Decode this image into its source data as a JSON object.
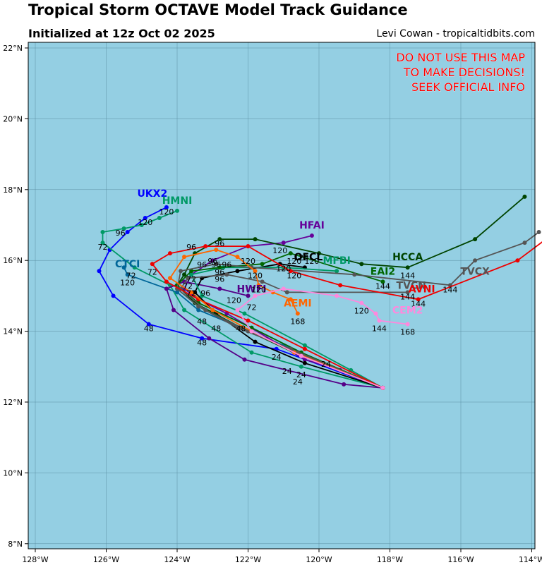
{
  "title": "Tropical Storm OCTAVE Model Track Guidance",
  "subtitle": "Initialized at 12z Oct 02 2025",
  "credit": "Levi Cowan - tropicaltidbits.com",
  "warning": [
    "DO NOT USE THIS MAP",
    "TO MAKE DECISIONS!",
    "SEEK OFFICIAL INFO"
  ],
  "lon_ticks": [
    "128°W",
    "126°W",
    "124°W",
    "122°W",
    "120°W",
    "118°W",
    "116°W",
    "114°W"
  ],
  "lat_ticks": [
    "22°N",
    "20°N",
    "18°N",
    "16°N",
    "14°N",
    "12°N",
    "10°N",
    "8°N"
  ],
  "colors": {
    "ocean": "#94cfe3",
    "grid": "#5b8fa3",
    "warning": "#ff0000"
  },
  "tracks": [
    {
      "name": "UKX2",
      "color": "#0000ff",
      "label_at": [
        -124.7,
        17.8
      ],
      "points": [
        [
          -118.2,
          12.4
        ],
        [
          -121.2,
          13.5
        ],
        [
          -123.3,
          13.8
        ],
        [
          -124.8,
          14.2
        ],
        [
          -125.8,
          15.0
        ],
        [
          -126.2,
          15.7
        ],
        [
          -125.9,
          16.3
        ],
        [
          -125.4,
          16.8
        ],
        [
          -124.9,
          17.2
        ],
        [
          -124.3,
          17.5
        ]
      ],
      "hours": [
        {
          "lab": "48",
          "at": [
            -124.8,
            14.0
          ]
        },
        {
          "lab": "120",
          "at": [
            -124.3,
            17.3
          ]
        }
      ]
    },
    {
      "name": "HMNI",
      "color": "#009966",
      "label_at": [
        -124.0,
        17.6
      ],
      "points": [
        [
          -118.2,
          12.4
        ],
        [
          -120.5,
          13.0
        ],
        [
          -121.9,
          13.4
        ],
        [
          -123.8,
          14.6
        ],
        [
          -124.2,
          15.3
        ],
        [
          -125.2,
          15.8
        ],
        [
          -126.1,
          16.5
        ],
        [
          -126.1,
          16.8
        ],
        [
          -125.5,
          16.9
        ],
        [
          -125.0,
          17.0
        ],
        [
          -124.5,
          17.2
        ],
        [
          -124.0,
          17.4
        ]
      ],
      "hours": [
        {
          "lab": "72",
          "at": [
            -126.1,
            16.3
          ]
        },
        {
          "lab": "96",
          "at": [
            -125.6,
            16.7
          ]
        },
        {
          "lab": "120",
          "at": [
            -124.9,
            17.0
          ]
        }
      ]
    },
    {
      "name": "CTCI",
      "color": "#006699",
      "label_at": [
        -125.4,
        15.8
      ],
      "points": [
        [
          -118.2,
          12.4
        ],
        [
          -121.0,
          13.6
        ],
        [
          -123.4,
          14.6
        ],
        [
          -124.0,
          15.1
        ],
        [
          -125.4,
          15.6
        ],
        [
          -125.5,
          15.8
        ]
      ],
      "hours": [
        {
          "lab": "72",
          "at": [
            -125.3,
            15.5
          ]
        },
        {
          "lab": "120",
          "at": [
            -125.4,
            15.3
          ]
        }
      ]
    },
    {
      "name": "HFAI",
      "color": "#660099",
      "label_at": [
        -120.2,
        16.9
      ],
      "points": [
        [
          -118.2,
          12.4
        ],
        [
          -119.4,
          12.9
        ],
        [
          -120.4,
          13.2
        ],
        [
          -122.6,
          14.5
        ],
        [
          -123.4,
          14.9
        ],
        [
          -123.8,
          15.2
        ],
        [
          -123.6,
          15.6
        ],
        [
          -123.0,
          16.0
        ],
        [
          -122.0,
          16.4
        ],
        [
          -121.0,
          16.5
        ],
        [
          -120.2,
          16.7
        ]
      ],
      "hours": [
        {
          "lab": "72",
          "at": [
            -123.6,
            15.4
          ]
        },
        {
          "lab": "96",
          "at": [
            -123.3,
            15.8
          ]
        },
        {
          "lab": "120",
          "at": [
            -121.1,
            16.2
          ]
        }
      ]
    },
    {
      "name": "HWFI",
      "color": "#550088",
      "label_at": [
        -121.9,
        15.1
      ],
      "points": [
        [
          -118.2,
          12.4
        ],
        [
          -119.3,
          12.5
        ],
        [
          -122.1,
          13.2
        ],
        [
          -123.1,
          13.8
        ],
        [
          -124.1,
          14.6
        ],
        [
          -124.3,
          15.2
        ],
        [
          -123.8,
          15.4
        ],
        [
          -122.8,
          15.2
        ],
        [
          -122.0,
          15.0
        ]
      ],
      "hours": [
        {
          "lab": "72",
          "at": [
            -121.9,
            14.6
          ]
        },
        {
          "lab": "96",
          "at": [
            -123.2,
            15.0
          ]
        },
        {
          "lab": "120",
          "at": [
            -122.4,
            14.8
          ]
        }
      ]
    },
    {
      "name": "OFCL",
      "color": "#000000",
      "label_at": [
        -120.3,
        16.0
      ],
      "points": [
        [
          -118.2,
          12.4
        ],
        [
          -120.4,
          13.1
        ],
        [
          -121.8,
          13.7
        ],
        [
          -122.9,
          14.5
        ],
        [
          -123.5,
          15.1
        ],
        [
          -123.3,
          15.5
        ],
        [
          -122.3,
          15.7
        ],
        [
          -121.1,
          15.9
        ],
        [
          -120.4,
          15.8
        ]
      ],
      "hours": [
        {
          "lab": "72",
          "at": [
            -123.6,
            15.0
          ]
        },
        {
          "lab": "96",
          "at": [
            -122.9,
            15.8
          ]
        },
        {
          "lab": "120",
          "at": [
            -121.0,
            15.7
          ]
        }
      ]
    },
    {
      "name": "HCCA",
      "color": "#004400",
      "label_at": [
        -117.5,
        16.0
      ],
      "points": [
        [
          -118.2,
          12.4
        ],
        [
          -120.5,
          13.3
        ],
        [
          -122.2,
          14.1
        ],
        [
          -123.5,
          14.8
        ],
        [
          -124.0,
          15.3
        ],
        [
          -123.8,
          15.6
        ],
        [
          -123.5,
          16.2
        ],
        [
          -122.8,
          16.6
        ],
        [
          -121.8,
          16.6
        ],
        [
          -120.0,
          16.2
        ],
        [
          -118.8,
          15.9
        ],
        [
          -117.5,
          15.8
        ],
        [
          -115.6,
          16.6
        ],
        [
          -114.2,
          17.8
        ]
      ],
      "hours": [
        {
          "lab": "96",
          "at": [
            -123.6,
            16.3
          ]
        },
        {
          "lab": "120",
          "at": [
            -120.2,
            15.9
          ]
        },
        {
          "lab": "144",
          "at": [
            -117.5,
            15.5
          ]
        }
      ]
    },
    {
      "name": "MFBI",
      "color": "#009966",
      "label_at": [
        -119.5,
        15.9
      ],
      "points": [
        [
          -118.2,
          12.4
        ],
        [
          -119.1,
          12.9
        ],
        [
          -120.4,
          13.6
        ],
        [
          -122.1,
          14.5
        ],
        [
          -123.3,
          15.0
        ],
        [
          -123.6,
          15.6
        ],
        [
          -122.7,
          15.8
        ],
        [
          -121.0,
          15.8
        ],
        [
          -119.5,
          15.7
        ]
      ],
      "hours": [
        {
          "lab": "72",
          "at": [
            -123.7,
            15.2
          ]
        },
        {
          "lab": "96",
          "at": [
            -122.8,
            15.6
          ]
        },
        {
          "lab": "120",
          "at": [
            -120.7,
            15.5
          ]
        }
      ]
    },
    {
      "name": "EAI2",
      "color": "#006600",
      "label_at": [
        -118.2,
        15.6
      ],
      "points": [
        [
          -118.2,
          12.4
        ],
        [
          -120.5,
          13.4
        ],
        [
          -121.9,
          14.1
        ],
        [
          -123.4,
          14.8
        ],
        [
          -124.0,
          15.3
        ],
        [
          -123.6,
          15.7
        ],
        [
          -122.8,
          15.8
        ],
        [
          -121.6,
          15.9
        ],
        [
          -120.8,
          16.2
        ],
        [
          -118.2,
          15.4
        ]
      ],
      "hours": [
        {
          "lab": "96",
          "at": [
            -122.6,
            15.8
          ]
        },
        {
          "lab": "120",
          "at": [
            -120.5,
            16.0
          ]
        },
        {
          "lab": "144",
          "at": [
            -118.2,
            15.2
          ]
        }
      ]
    },
    {
      "name": "TVCN",
      "color": "#555555",
      "label_at": [
        -117.4,
        15.2
      ],
      "points": [
        [
          -118.2,
          12.4
        ],
        [
          -120.6,
          13.4
        ],
        [
          -122.0,
          14.0
        ],
        [
          -123.2,
          14.6
        ],
        [
          -123.9,
          15.2
        ],
        [
          -123.7,
          15.5
        ],
        [
          -122.6,
          15.6
        ],
        [
          -121.6,
          15.4
        ],
        [
          -120.9,
          15.1
        ],
        [
          -117.5,
          15.1
        ]
      ],
      "hours": [
        {
          "lab": "96",
          "at": [
            -122.8,
            15.4
          ]
        },
        {
          "lab": "120",
          "at": [
            -121.7,
            15.1
          ]
        },
        {
          "lab": "144",
          "at": [
            -117.5,
            14.9
          ]
        }
      ]
    },
    {
      "name": "TVCX",
      "color": "#555555",
      "label_at": [
        -115.6,
        15.6
      ],
      "points": [
        [
          -118.2,
          12.4
        ],
        [
          -120.8,
          13.5
        ],
        [
          -122.3,
          14.1
        ],
        [
          -123.4,
          14.7
        ],
        [
          -124.0,
          15.2
        ],
        [
          -123.9,
          15.7
        ],
        [
          -122.9,
          15.9
        ],
        [
          -121.9,
          15.8
        ],
        [
          -119.0,
          15.6
        ],
        [
          -116.3,
          15.3
        ],
        [
          -115.6,
          16.0
        ],
        [
          -114.2,
          16.5
        ],
        [
          -113.8,
          16.8
        ]
      ],
      "hours": [
        {
          "lab": "96",
          "at": [
            -123.0,
            15.9
          ]
        },
        {
          "lab": "120",
          "at": [
            -122.0,
            15.9
          ]
        },
        {
          "lab": "144",
          "at": [
            -116.3,
            15.1
          ]
        }
      ]
    },
    {
      "name": "AVNI",
      "color": "#ee0000",
      "label_at": [
        -117.1,
        15.1
      ],
      "points": [
        [
          -118.2,
          12.4
        ],
        [
          -120.4,
          13.5
        ],
        [
          -122.0,
          14.3
        ],
        [
          -123.4,
          14.9
        ],
        [
          -124.3,
          15.4
        ],
        [
          -124.7,
          15.9
        ],
        [
          -124.2,
          16.2
        ],
        [
          -123.2,
          16.4
        ],
        [
          -122.0,
          16.4
        ],
        [
          -120.8,
          15.7
        ],
        [
          -119.4,
          15.3
        ],
        [
          -117.2,
          14.9
        ],
        [
          -114.4,
          16.0
        ],
        [
          -113.6,
          16.6
        ]
      ],
      "hours": [
        {
          "lab": "72",
          "at": [
            -124.7,
            15.6
          ]
        },
        {
          "lab": "96",
          "at": [
            -122.8,
            16.4
          ]
        },
        {
          "lab": "120",
          "at": [
            -120.7,
            15.9
          ]
        },
        {
          "lab": "144",
          "at": [
            -117.2,
            14.7
          ]
        }
      ]
    },
    {
      "name": "AEMI",
      "color": "#ff6600",
      "label_at": [
        -120.6,
        14.7
      ],
      "points": [
        [
          -118.2,
          12.4
        ],
        [
          -120.7,
          13.4
        ],
        [
          -121.9,
          14.0
        ],
        [
          -123.0,
          14.6
        ],
        [
          -123.6,
          15.1
        ],
        [
          -124.2,
          15.5
        ],
        [
          -123.8,
          16.1
        ],
        [
          -122.9,
          16.3
        ],
        [
          -122.3,
          16.1
        ],
        [
          -121.8,
          15.7
        ],
        [
          -121.7,
          15.3
        ],
        [
          -121.3,
          15.1
        ],
        [
          -120.8,
          14.9
        ],
        [
          -120.6,
          14.5
        ]
      ],
      "hours": [
        {
          "lab": "120",
          "at": [
            -121.8,
            15.5
          ]
        },
        {
          "lab": "168",
          "at": [
            -120.6,
            14.2
          ]
        }
      ]
    },
    {
      "name": "CEM2",
      "color": "#ff88dd",
      "label_at": [
        -117.5,
        14.5
      ],
      "points": [
        [
          -118.2,
          12.4
        ],
        [
          -120.5,
          13.3
        ],
        [
          -121.9,
          14.0
        ],
        [
          -122.3,
          14.6
        ],
        [
          -121.8,
          15.0
        ],
        [
          -121.0,
          15.2
        ],
        [
          -119.5,
          15.0
        ],
        [
          -118.8,
          14.8
        ],
        [
          -118.4,
          14.5
        ],
        [
          -118.3,
          14.3
        ],
        [
          -117.5,
          14.2
        ]
      ],
      "hours": [
        {
          "lab": "120",
          "at": [
            -118.8,
            14.5
          ]
        },
        {
          "lab": "144",
          "at": [
            -118.3,
            14.0
          ]
        },
        {
          "lab": "168",
          "at": [
            -117.5,
            13.9
          ]
        }
      ]
    }
  ],
  "stray_labels": [
    {
      "lab": "24",
      "at": [
        -120.9,
        12.8
      ]
    },
    {
      "lab": "24",
      "at": [
        -121.2,
        13.2
      ]
    },
    {
      "lab": "24",
      "at": [
        -120.5,
        12.7
      ]
    },
    {
      "lab": "24",
      "at": [
        -120.6,
        12.5
      ]
    },
    {
      "lab": "24",
      "at": [
        -119.8,
        13.0
      ]
    },
    {
      "lab": "48",
      "at": [
        -123.3,
        14.2
      ]
    },
    {
      "lab": "48",
      "at": [
        -123.3,
        13.6
      ]
    },
    {
      "lab": "48",
      "at": [
        -122.9,
        14.0
      ]
    },
    {
      "lab": "48",
      "at": [
        -122.2,
        14.0
      ]
    }
  ]
}
